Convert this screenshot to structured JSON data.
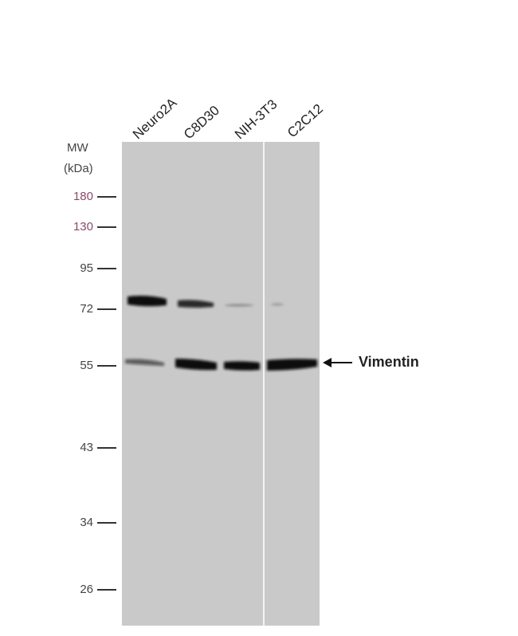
{
  "lanes": [
    "Neuro2A",
    "C8D30",
    "NIH-3T3",
    "C2C12"
  ],
  "mw_title": "MW",
  "mw_unit": "(kDa)",
  "markers": [
    180,
    130,
    95,
    72,
    55,
    43,
    34,
    26
  ],
  "target": "Vimentin"
}
